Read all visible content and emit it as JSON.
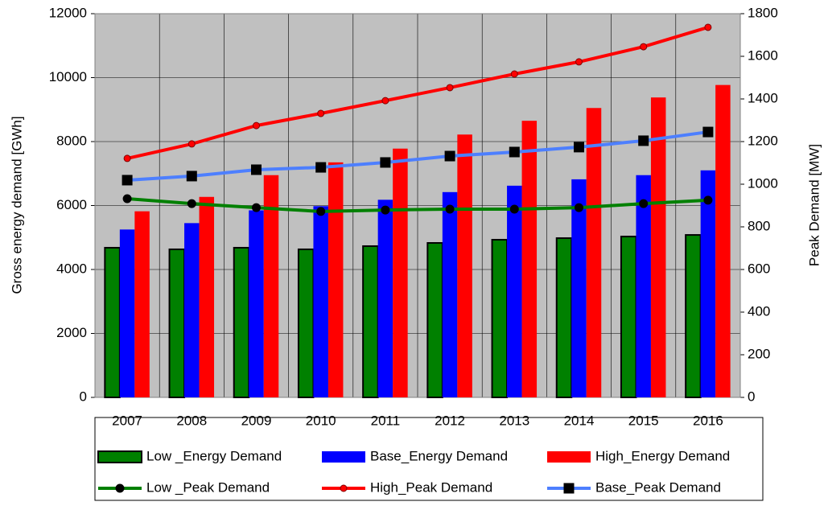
{
  "chart_data": {
    "type": "bar",
    "ylabel": "Gross energy demand [GWh]",
    "y2label": "Peak Demand [MW]",
    "categories": [
      "2007",
      "2008",
      "2009",
      "2010",
      "2011",
      "2012",
      "2013",
      "2014",
      "2015",
      "2016"
    ],
    "series": [
      {
        "name": "Low _Energy Demand",
        "type": "bar",
        "color": "#008000",
        "values": [
          4680,
          4630,
          4680,
          4630,
          4730,
          4830,
          4930,
          4980,
          5030,
          5080
        ]
      },
      {
        "name": "Base_Energy Demand",
        "type": "bar",
        "color": "#0000ff",
        "values": [
          5250,
          5450,
          5850,
          5980,
          6180,
          6420,
          6620,
          6820,
          6950,
          7100
        ]
      },
      {
        "name": "High_Energy Demand",
        "type": "bar",
        "color": "#ff0000",
        "values": [
          5820,
          6270,
          6950,
          7350,
          7780,
          8220,
          8650,
          9050,
          9380,
          9770
        ]
      },
      {
        "name": "Low _Peak Demand",
        "type": "line",
        "axis": "y2",
        "color": "#008000",
        "marker": "circle",
        "marker_color": "#000000",
        "values": [
          932,
          909,
          890,
          872,
          879,
          883,
          883,
          890,
          909,
          925
        ]
      },
      {
        "name": "High_Peak Demand",
        "type": "line",
        "axis": "y2",
        "color": "#ff0000",
        "marker": "circle",
        "marker_color": "#ff0000",
        "values": [
          1121,
          1189,
          1275,
          1332,
          1392,
          1453,
          1517,
          1574,
          1645,
          1736
        ]
      },
      {
        "name": "Base_Peak Demand",
        "type": "line",
        "axis": "y2",
        "color": "#4d7fff",
        "marker": "square",
        "marker_color": "#000000",
        "values": [
          1019,
          1038,
          1068,
          1079,
          1102,
          1132,
          1151,
          1174,
          1204,
          1245
        ]
      }
    ],
    "ylim": [
      0,
      12000
    ],
    "yticks": [
      0,
      2000,
      4000,
      6000,
      8000,
      10000,
      12000
    ],
    "y2lim": [
      0,
      1800
    ],
    "y2ticks": [
      0,
      200,
      400,
      600,
      800,
      1000,
      1200,
      1400,
      1600,
      1800
    ],
    "grid": true,
    "legend": "bottom"
  }
}
